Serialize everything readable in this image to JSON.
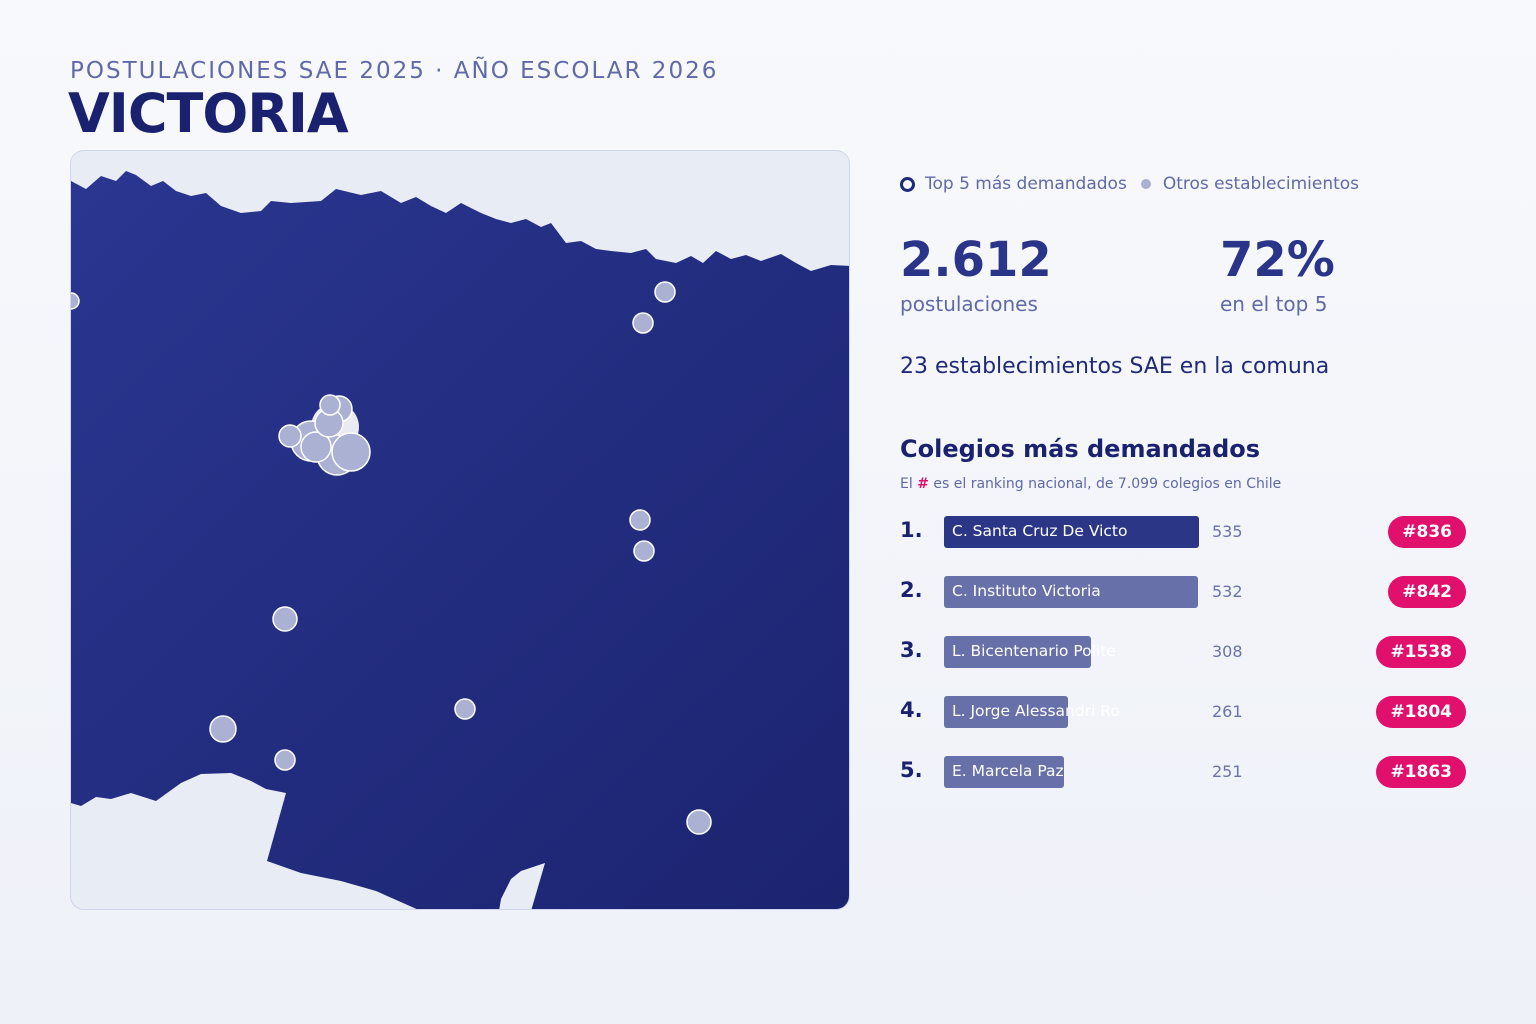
{
  "header": {
    "subtitle": "POSTULACIONES SAE 2025 · AÑO ESCOLAR 2026",
    "title": "VICTORIA"
  },
  "legend": {
    "top5_label": "Top 5 más demandados",
    "others_label": "Otros establecimientos"
  },
  "stats": {
    "applications_value": "2.612",
    "applications_label": "postulaciones",
    "top5_share_value": "72%",
    "top5_share_label": "en el top 5",
    "schools_count_text": "23 establecimientos SAE en la comuna"
  },
  "ranking": {
    "title": "Colegios más demandados",
    "note_prefix": "El",
    "note_hash": "#",
    "note_suffix": "es el ranking nacional, de 7.099 colegios en Chile",
    "max_value": 535,
    "items": [
      {
        "rank": "1.",
        "name": "C. Santa Cruz De Victo",
        "value": 535,
        "value_text": "535",
        "badge": "#836"
      },
      {
        "rank": "2.",
        "name": "C. Instituto Victoria",
        "value": 532,
        "value_text": "532",
        "badge": "#842"
      },
      {
        "rank": "3.",
        "name": "L. Bicentenario Polite",
        "value": 308,
        "value_text": "308",
        "badge": "#1538"
      },
      {
        "rank": "4.",
        "name": "L. Jorge Alessandri Ro",
        "value": 261,
        "value_text": "261",
        "badge": "#1804"
      },
      {
        "rank": "5.",
        "name": "E. Marcela Paz",
        "value": 251,
        "value_text": "251",
        "badge": "#1863"
      }
    ]
  },
  "colors": {
    "comuna_fill": "#232d82",
    "background_land": "#e8ecf5",
    "school_marker": "#aab1d2",
    "top5_ring": "#ffffff",
    "badge": "#e0106c",
    "bar_first": "#2c3686",
    "bar_other": "#6770a8"
  }
}
